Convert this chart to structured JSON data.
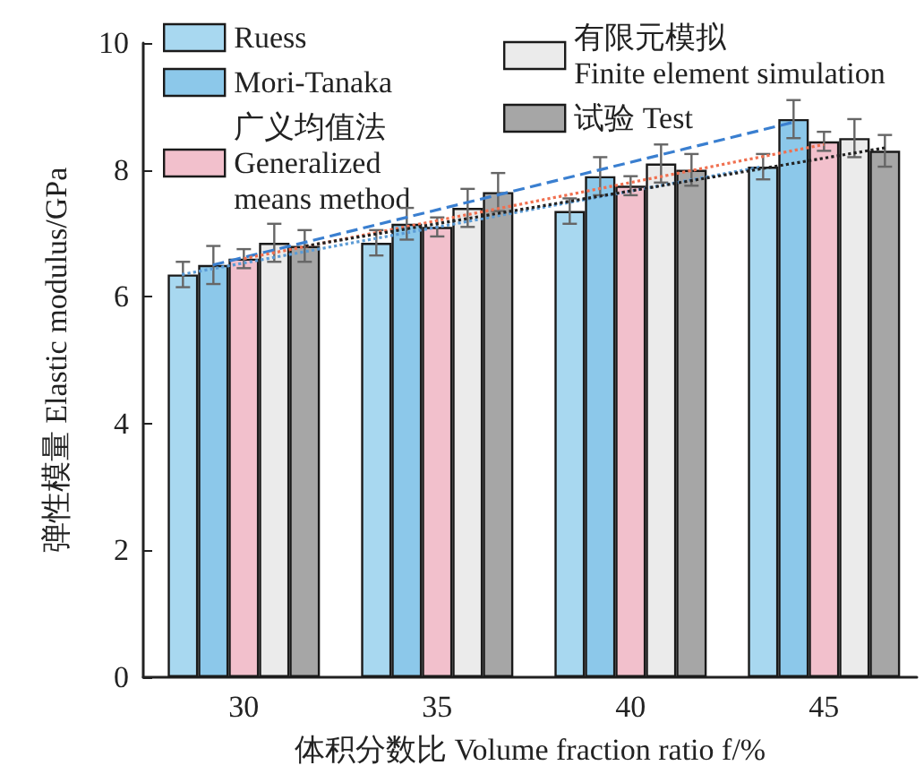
{
  "chart_data": {
    "type": "bar",
    "xlabel": "体积分数比 Volume fraction ratio f/%",
    "ylabel": "弹性模量 Elastic modulus/GPa",
    "x": [
      30,
      35,
      40,
      45
    ],
    "xlim": [
      27.4,
      47.4
    ],
    "xticks": [
      30,
      35,
      40,
      45
    ],
    "ylim": [
      0,
      10
    ],
    "yticks": [
      0,
      2,
      4,
      6,
      8,
      10
    ],
    "grid": false,
    "legend": "top left",
    "series": [
      {
        "name": "Ruess",
        "color": "#a8d8f0",
        "values": [
          6.35,
          6.85,
          7.35,
          8.05
        ],
        "errors": [
          0.2,
          0.2,
          0.2,
          0.2
        ]
      },
      {
        "name": "Mori-Tanaka",
        "color": "#8cc8ea",
        "values": [
          6.5,
          7.15,
          7.9,
          8.8
        ],
        "errors": [
          0.3,
          0.25,
          0.3,
          0.3
        ]
      },
      {
        "name": "广义均值法\nGeneralized\nmeans method",
        "color": "#f2c0cc",
        "values": [
          6.6,
          7.1,
          7.75,
          8.45
        ],
        "errors": [
          0.15,
          0.15,
          0.15,
          0.15
        ]
      },
      {
        "name": "有限元模拟\nFinite element simulation",
        "color": "#ebebeb",
        "values": [
          6.85,
          7.4,
          8.1,
          8.5
        ],
        "errors": [
          0.3,
          0.3,
          0.3,
          0.3
        ]
      },
      {
        "name": "试验 Test",
        "color": "#a6a6a6",
        "values": [
          6.8,
          7.65,
          8.0,
          8.3
        ],
        "errors": [
          0.25,
          0.3,
          0.25,
          0.25
        ]
      },
      {
        "type": "line",
        "color": "#5b9bd5",
        "x": [
          28.4,
          43.4
        ],
        "values": [
          6.35,
          8.05
        ],
        "line_style": "dotted"
      },
      {
        "type": "line",
        "color": "#3a7fd0",
        "x": [
          29.2,
          44.2
        ],
        "values": [
          6.5,
          8.75
        ],
        "line_style": "dashed"
      },
      {
        "type": "line",
        "color": "#f07050",
        "x": [
          30,
          45
        ],
        "values": [
          6.6,
          8.4
        ],
        "line_style": "dotted"
      },
      {
        "type": "line",
        "color": "#222222",
        "x": [
          31.6,
          46.6
        ],
        "values": [
          6.8,
          8.35
        ],
        "line_style": "dotted"
      }
    ]
  }
}
